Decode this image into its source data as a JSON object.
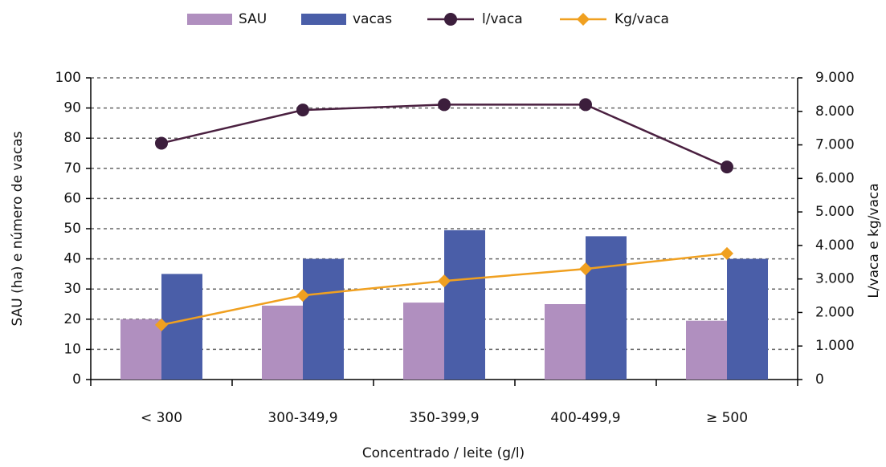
{
  "chart_data": {
    "type": "bar",
    "categories": [
      "< 300",
      "300-349,9",
      "350-399,9",
      "400-499,9",
      "≥ 500"
    ],
    "series": [
      {
        "name": "SAU",
        "type": "bar",
        "color": "#b08fbf",
        "values": [
          20,
          24.5,
          25.5,
          25,
          19.5
        ]
      },
      {
        "name": "vacas",
        "type": "bar",
        "color": "#4a5ea8",
        "values": [
          35,
          40,
          49.5,
          47.5,
          40
        ]
      },
      {
        "name": "l/vaca",
        "type": "line",
        "axis": "y2",
        "color": "#4a2040",
        "values": [
          7050,
          8040,
          8200,
          8200,
          6340
        ]
      },
      {
        "name": "Kg/vaca",
        "type": "line",
        "axis": "y2",
        "color": "#f0a020",
        "values": [
          1630,
          2510,
          2940,
          3300,
          3760
        ]
      }
    ],
    "ylabel": "SAU (ha) e número de vacas",
    "y2label": "L/vaca e kg/vaca",
    "xlabel": "Concentrado / leite (g/l)",
    "ylim": [
      0,
      100
    ],
    "yticks": [
      0,
      10,
      20,
      30,
      40,
      50,
      60,
      70,
      80,
      90,
      100
    ],
    "y2lim": [
      0,
      9000
    ],
    "y2ticks": [
      0,
      {
        "value": 1000,
        "label": "1.000"
      },
      {
        "value": 2000,
        "label": "2.000"
      },
      {
        "value": 3000,
        "label": "3.000"
      },
      {
        "value": 4000,
        "label": "4.000"
      },
      {
        "value": 5000,
        "label": "5.000"
      },
      {
        "value": 6000,
        "label": "6.000"
      },
      {
        "value": 7000,
        "label": "7.000"
      },
      {
        "value": 8000,
        "label": "8.000"
      },
      {
        "value": 9000,
        "label": "9.000"
      }
    ],
    "grid": true,
    "legend": "top"
  }
}
